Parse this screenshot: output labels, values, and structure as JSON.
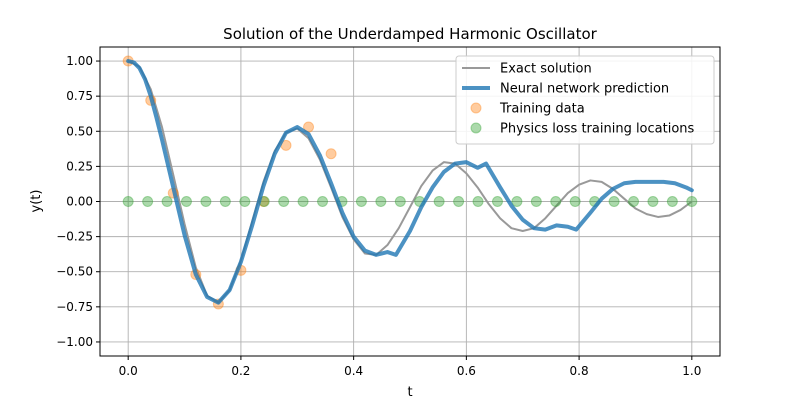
{
  "chart_data": {
    "type": "line",
    "title": "Solution of the Underdamped Harmonic Oscillator",
    "xlabel": "t",
    "ylabel": "y(t)",
    "xlim": [
      -0.05,
      1.05
    ],
    "ylim": [
      -1.1,
      1.1
    ],
    "x_ticks": [
      0.0,
      0.2,
      0.4,
      0.6,
      0.8,
      1.0
    ],
    "x_tick_labels": [
      "0.0",
      "0.2",
      "0.4",
      "0.6",
      "0.8",
      "1.0"
    ],
    "y_ticks": [
      1.0,
      0.75,
      0.5,
      0.25,
      0.0,
      -0.25,
      -0.5,
      -0.75,
      -1.0
    ],
    "y_tick_labels": [
      "1.00",
      "0.75",
      "0.50",
      "0.25",
      "0.00",
      "−0.25",
      "−0.50",
      "−0.75",
      "−1.00"
    ],
    "grid": true,
    "legend_position": "top-right",
    "series": [
      {
        "name": "Exact solution",
        "kind": "line",
        "color": "#999999",
        "x": [
          0.0,
          0.02,
          0.04,
          0.06,
          0.08,
          0.1,
          0.12,
          0.14,
          0.16,
          0.18,
          0.2,
          0.22,
          0.24,
          0.26,
          0.28,
          0.3,
          0.32,
          0.34,
          0.36,
          0.38,
          0.4,
          0.42,
          0.44,
          0.46,
          0.48,
          0.5,
          0.52,
          0.54,
          0.56,
          0.58,
          0.6,
          0.62,
          0.64,
          0.66,
          0.68,
          0.7,
          0.72,
          0.74,
          0.76,
          0.78,
          0.8,
          0.82,
          0.84,
          0.86,
          0.88,
          0.9,
          0.92,
          0.94,
          0.96,
          0.98,
          1.0
        ],
        "y": [
          1.0,
          0.96,
          0.8,
          0.53,
          0.19,
          -0.16,
          -0.47,
          -0.67,
          -0.72,
          -0.63,
          -0.42,
          -0.14,
          0.14,
          0.36,
          0.49,
          0.52,
          0.45,
          0.3,
          0.1,
          -0.11,
          -0.27,
          -0.37,
          -0.38,
          -0.31,
          -0.19,
          -0.04,
          0.11,
          0.22,
          0.28,
          0.27,
          0.2,
          0.1,
          -0.02,
          -0.12,
          -0.19,
          -0.21,
          -0.19,
          -0.12,
          -0.03,
          0.06,
          0.12,
          0.15,
          0.14,
          0.09,
          0.02,
          -0.05,
          -0.09,
          -0.11,
          -0.1,
          -0.06,
          0.0
        ]
      },
      {
        "name": "Neural network prediction",
        "kind": "line",
        "color": "#1f77b4",
        "x": [
          0.0,
          0.01,
          0.02,
          0.03,
          0.04,
          0.05,
          0.06,
          0.08,
          0.1,
          0.12,
          0.14,
          0.16,
          0.18,
          0.2,
          0.22,
          0.24,
          0.26,
          0.28,
          0.3,
          0.32,
          0.34,
          0.36,
          0.38,
          0.4,
          0.42,
          0.44,
          0.46,
          0.475,
          0.5,
          0.52,
          0.54,
          0.56,
          0.58,
          0.6,
          0.62,
          0.635,
          0.66,
          0.68,
          0.7,
          0.72,
          0.74,
          0.76,
          0.78,
          0.795,
          0.82,
          0.84,
          0.86,
          0.88,
          0.9,
          0.92,
          0.95,
          0.97,
          0.99,
          1.0
        ],
        "y": [
          1.0,
          0.99,
          0.95,
          0.87,
          0.75,
          0.6,
          0.44,
          0.1,
          -0.24,
          -0.52,
          -0.68,
          -0.72,
          -0.63,
          -0.43,
          -0.17,
          0.11,
          0.34,
          0.49,
          0.53,
          0.48,
          0.33,
          0.13,
          -0.08,
          -0.25,
          -0.35,
          -0.38,
          -0.36,
          -0.38,
          -0.21,
          -0.04,
          0.1,
          0.21,
          0.27,
          0.28,
          0.24,
          0.27,
          0.1,
          -0.03,
          -0.13,
          -0.19,
          -0.2,
          -0.17,
          -0.18,
          -0.2,
          -0.08,
          0.02,
          0.09,
          0.13,
          0.14,
          0.14,
          0.14,
          0.13,
          0.1,
          0.08
        ]
      },
      {
        "name": "Training data",
        "kind": "scatter",
        "color": "#ff7f0e",
        "x": [
          0.0,
          0.04,
          0.08,
          0.12,
          0.16,
          0.2,
          0.24,
          0.28,
          0.32,
          0.36
        ],
        "y": [
          1.0,
          0.72,
          0.06,
          -0.52,
          -0.73,
          -0.49,
          0.0,
          0.4,
          0.53,
          0.34
        ]
      },
      {
        "name": "Physics loss training locations",
        "kind": "scatter",
        "color": "#2ca02c",
        "x": [
          0.0,
          0.0345,
          0.069,
          0.1034,
          0.1379,
          0.1724,
          0.2069,
          0.2414,
          0.2759,
          0.3103,
          0.3448,
          0.3793,
          0.4138,
          0.4483,
          0.4828,
          0.5172,
          0.5517,
          0.5862,
          0.6207,
          0.6552,
          0.6897,
          0.7241,
          0.7586,
          0.7931,
          0.8276,
          0.8621,
          0.8966,
          0.931,
          0.9655,
          1.0
        ],
        "y": [
          0.0,
          0.0,
          0.0,
          0.0,
          0.0,
          0.0,
          0.0,
          0.0,
          0.0,
          0.0,
          0.0,
          0.0,
          0.0,
          0.0,
          0.0,
          0.0,
          0.0,
          0.0,
          0.0,
          0.0,
          0.0,
          0.0,
          0.0,
          0.0,
          0.0,
          0.0,
          0.0,
          0.0,
          0.0,
          0.0
        ]
      }
    ]
  }
}
